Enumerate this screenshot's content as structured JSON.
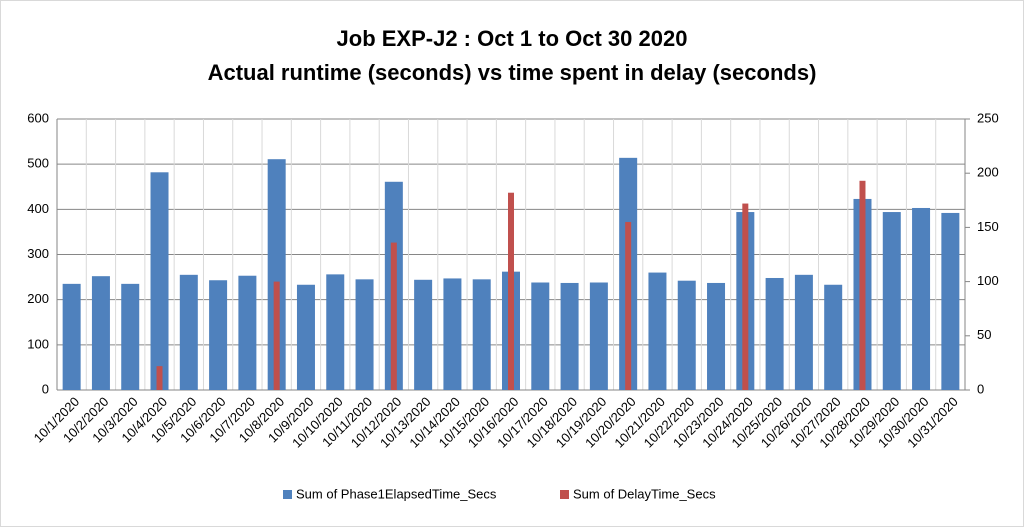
{
  "chart_data": {
    "type": "bar",
    "title": "Job EXP-J2 : Oct 1 to Oct 30 2020",
    "subtitle": "Actual runtime (seconds) vs time spent in delay (seconds)",
    "categories": [
      "10/1/2020",
      "10/2/2020",
      "10/3/2020",
      "10/4/2020",
      "10/5/2020",
      "10/6/2020",
      "10/7/2020",
      "10/8/2020",
      "10/9/2020",
      "10/10/2020",
      "10/11/2020",
      "10/12/2020",
      "10/13/2020",
      "10/14/2020",
      "10/15/2020",
      "10/16/2020",
      "10/17/2020",
      "10/18/2020",
      "10/19/2020",
      "10/20/2020",
      "10/21/2020",
      "10/22/2020",
      "10/23/2020",
      "10/24/2020",
      "10/25/2020",
      "10/26/2020",
      "10/27/2020",
      "10/28/2020",
      "10/29/2020",
      "10/30/2020",
      "10/31/2020"
    ],
    "series": [
      {
        "name": "Sum of Phase1ElapsedTime_Secs",
        "color": "#4f81bd",
        "axis": "y",
        "values": [
          235,
          252,
          235,
          482,
          255,
          243,
          253,
          511,
          233,
          256,
          245,
          461,
          244,
          247,
          245,
          262,
          238,
          237,
          238,
          514,
          260,
          242,
          237,
          394,
          248,
          255,
          233,
          423,
          394,
          403,
          392
        ]
      },
      {
        "name": "Sum of DelayTime_Secs",
        "color": "#c0504d",
        "axis": "y2",
        "values": [
          null,
          null,
          null,
          22,
          null,
          null,
          null,
          100,
          null,
          null,
          null,
          136,
          null,
          null,
          null,
          182,
          null,
          null,
          null,
          155,
          null,
          null,
          null,
          172,
          null,
          null,
          null,
          193,
          null,
          null,
          null
        ]
      }
    ],
    "ylim": [
      0,
      600
    ],
    "yticks": [
      0,
      100,
      200,
      300,
      400,
      500,
      600
    ],
    "y2lim": [
      0,
      250
    ],
    "y2ticks": [
      0,
      50,
      100,
      150,
      200,
      250
    ],
    "grid": true,
    "legend": "bottom"
  }
}
